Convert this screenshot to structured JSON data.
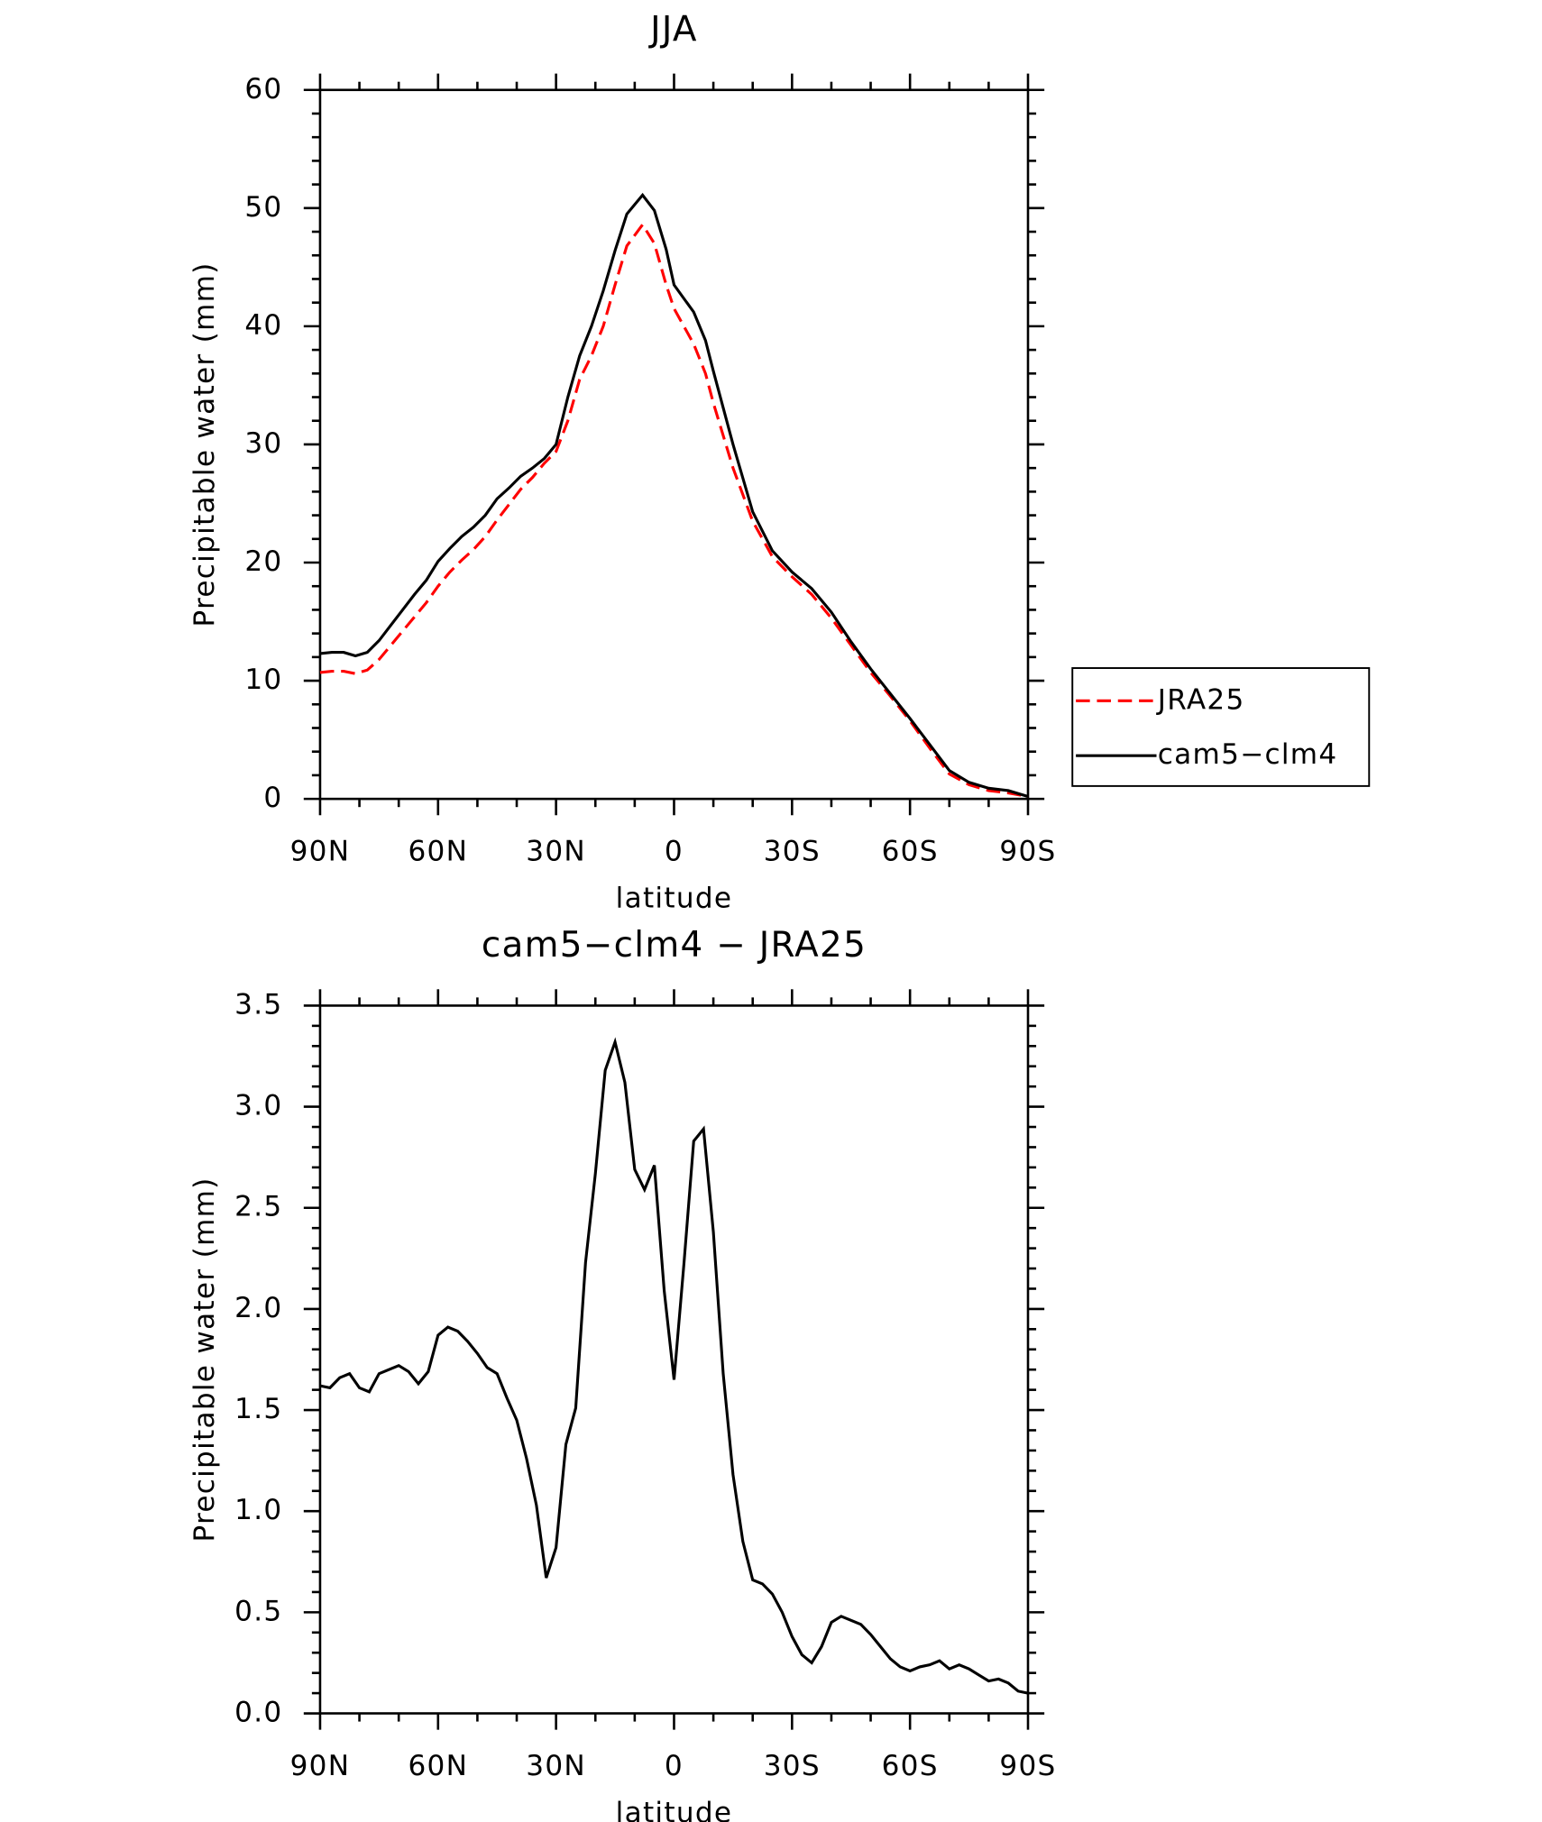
{
  "chart_data": [
    {
      "type": "line",
      "title": "JJA",
      "x_label": "latitude",
      "y_label": "Precipitable water (mm)",
      "x": [
        90,
        87,
        84,
        81,
        78,
        75,
        72,
        69,
        66,
        63,
        60,
        57,
        54,
        51,
        48,
        45,
        42,
        39,
        36,
        33,
        30,
        27,
        24,
        21,
        18,
        15,
        12,
        8,
        5,
        2,
        0,
        -5,
        -8,
        -10,
        -15,
        -20,
        -25,
        -30,
        -35,
        -40,
        -45,
        -50,
        -55,
        -60,
        -65,
        -70,
        -75,
        -80,
        -85,
        -90
      ],
      "xlim": [
        90,
        -90
      ],
      "xticks": [
        {
          "value": 90,
          "label": "90N"
        },
        {
          "value": 60,
          "label": "60N"
        },
        {
          "value": 30,
          "label": "30N"
        },
        0,
        {
          "value": -30,
          "label": "30S"
        },
        {
          "value": -60,
          "label": "60S"
        },
        {
          "value": -90,
          "label": "90S"
        }
      ],
      "ylim": [
        0,
        60
      ],
      "yticks": [
        0,
        10,
        20,
        30,
        40,
        50,
        60
      ],
      "legend": "right",
      "series": [
        {
          "name": "JRA25",
          "color": "#ff0000",
          "dash": "dashed",
          "values": [
            10.7,
            10.8,
            10.8,
            10.6,
            10.9,
            11.8,
            13,
            14.2,
            15.4,
            16.6,
            18,
            19.2,
            20.2,
            21.1,
            22.2,
            23.6,
            24.9,
            26.2,
            27.2,
            28.4,
            29.4,
            32,
            35.5,
            37.5,
            40,
            43.5,
            46.8,
            48.6,
            47,
            43.5,
            41.5,
            38.5,
            36,
            33.5,
            28,
            23.5,
            20.5,
            18.8,
            17.3,
            15.3,
            13,
            10.7,
            8.7,
            6.6,
            4.3,
            2.1,
            1.2,
            0.7,
            0.5,
            0.2
          ]
        },
        {
          "name": "cam5−clm4",
          "color": "#000000",
          "dash": "solid",
          "values": [
            12.3,
            12.4,
            12.4,
            12.1,
            12.4,
            13.4,
            14.7,
            16,
            17.3,
            18.5,
            20.1,
            21.2,
            22.2,
            23,
            24,
            25.4,
            26.3,
            27.3,
            28,
            28.8,
            30,
            34,
            37.5,
            40,
            43,
            46.4,
            49.5,
            51.1,
            49.8,
            46.5,
            43.5,
            41.2,
            38.8,
            36.2,
            30,
            24.3,
            21,
            19.2,
            17.8,
            15.8,
            13.3,
            11,
            8.9,
            6.8,
            4.6,
            2.4,
            1.4,
            0.9,
            0.7,
            0.2
          ]
        }
      ]
    },
    {
      "type": "line",
      "title": "cam5−clm4 − JRA25",
      "x_label": "latitude",
      "y_label": "Precipitable water (mm)",
      "x": [
        90,
        87.5,
        85,
        82.5,
        80,
        77.5,
        75,
        72.5,
        70,
        67.5,
        65,
        62.5,
        60,
        57.5,
        55,
        52.5,
        50,
        47.5,
        45,
        42.5,
        40,
        37.5,
        35,
        32.5,
        30,
        27.5,
        25,
        22.5,
        20,
        17.5,
        15,
        12.5,
        10,
        7.5,
        5,
        2.5,
        0,
        -2.5,
        -5,
        -7.5,
        -10,
        -12.5,
        -15,
        -17.5,
        -20,
        -22.5,
        -25,
        -27.5,
        -30,
        -32.5,
        -35,
        -37.5,
        -40,
        -42.5,
        -45,
        -47.5,
        -50,
        -52.5,
        -55,
        -57.5,
        -60,
        -62.5,
        -65,
        -67.5,
        -70,
        -72.5,
        -75,
        -77.5,
        -80,
        -82.5,
        -85,
        -87.5,
        -90
      ],
      "xlim": [
        90,
        -90
      ],
      "xticks": [
        {
          "value": 90,
          "label": "90N"
        },
        {
          "value": 60,
          "label": "60N"
        },
        {
          "value": 30,
          "label": "30N"
        },
        0,
        {
          "value": -30,
          "label": "30S"
        },
        {
          "value": -60,
          "label": "60S"
        },
        {
          "value": -90,
          "label": "90S"
        }
      ],
      "ylim": [
        0,
        3.5
      ],
      "yticks": [
        {
          "value": 0,
          "label": "0.0"
        },
        0.5,
        {
          "value": 1,
          "label": "1.0"
        },
        1.5,
        {
          "value": 2,
          "label": "2.0"
        },
        2.5,
        {
          "value": 3,
          "label": "3.0"
        },
        3.5
      ],
      "color": "#000000",
      "values": [
        1.62,
        1.61,
        1.66,
        1.68,
        1.61,
        1.59,
        1.68,
        1.7,
        1.72,
        1.69,
        1.63,
        1.69,
        1.87,
        1.91,
        1.89,
        1.84,
        1.78,
        1.71,
        1.68,
        1.56,
        1.45,
        1.26,
        1.03,
        0.67,
        0.82,
        1.33,
        1.51,
        2.23,
        2.67,
        3.18,
        3.32,
        3.12,
        2.69,
        2.59,
        2.71,
        2.09,
        1.65,
        2.22,
        2.83,
        2.89,
        2.38,
        1.68,
        1.18,
        0.85,
        0.66,
        0.64,
        0.59,
        0.5,
        0.38,
        0.29,
        0.25,
        0.33,
        0.45,
        0.48,
        0.46,
        0.44,
        0.39,
        0.33,
        0.27,
        0.23,
        0.21,
        0.23,
        0.24,
        0.26,
        0.22,
        0.24,
        0.22,
        0.19,
        0.16,
        0.17,
        0.15,
        0.11,
        0.1
      ]
    }
  ]
}
